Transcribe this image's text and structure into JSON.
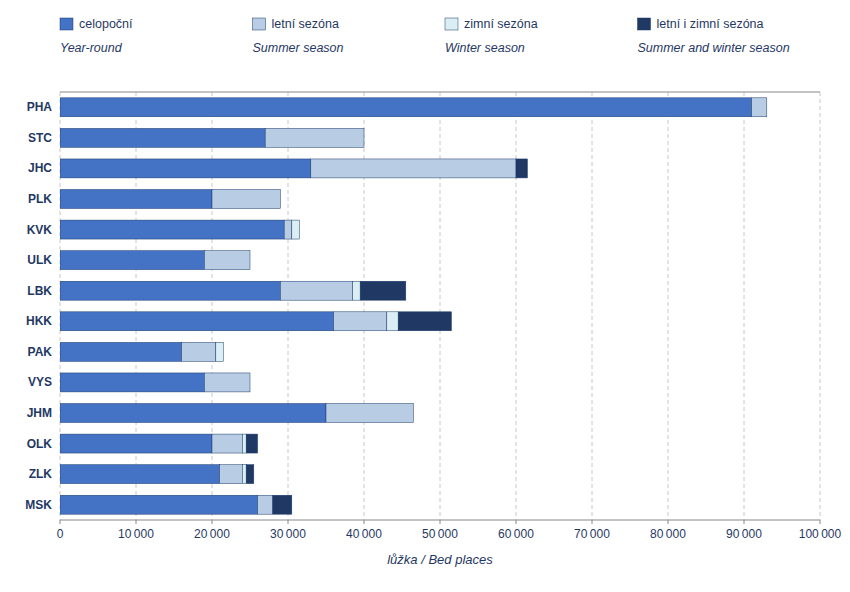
{
  "chart_data": {
    "type": "bar",
    "orientation": "horizontal",
    "stacked": true,
    "grid": true,
    "legend": "top",
    "categories": [
      "PHA",
      "STC",
      "JHC",
      "PLK",
      "KVK",
      "ULK",
      "LBK",
      "HKK",
      "PAK",
      "VYS",
      "JHM",
      "OLK",
      "ZLK",
      "MSK"
    ],
    "series": [
      {
        "name": "celoроční",
        "color": "#4472C4",
        "values": [
          91000,
          27000,
          33000,
          20000,
          29500,
          19000,
          29000,
          36000,
          16000,
          19000,
          35000,
          20000,
          21000,
          26000
        ]
      },
      {
        "name": "letní sezóna",
        "color": "#B8CCE4",
        "values": [
          2000,
          13000,
          27000,
          9000,
          1000,
          6000,
          9500,
          7000,
          4500,
          6000,
          11500,
          4000,
          3000,
          2000
        ]
      },
      {
        "name": "zimní sezóna",
        "color": "#DAEEF3",
        "values": [
          0,
          0,
          0,
          0,
          1000,
          0,
          1000,
          1500,
          1000,
          0,
          0,
          500,
          500,
          0
        ]
      },
      {
        "name": "letní i zimní sezóna",
        "color": "#1F3864",
        "values": [
          0,
          0,
          1500,
          0,
          0,
          0,
          6000,
          7000,
          0,
          0,
          0,
          1500,
          1000,
          2500
        ]
      }
    ],
    "annotations": [
      "Year-round",
      "Summer season",
      "Winter season",
      "Summer and winter season"
    ],
    "xlabel": "lůžka / Bed places",
    "xlim": [
      0,
      100000
    ],
    "xticks": [
      0,
      {
        "value": 10000,
        "label": "10 000"
      },
      {
        "value": 20000,
        "label": "20 000"
      },
      {
        "value": 30000,
        "label": "30 000"
      },
      {
        "value": 40000,
        "label": "40 000"
      },
      {
        "value": 50000,
        "label": "50 000"
      },
      {
        "value": 60000,
        "label": "60 000"
      },
      {
        "value": 70000,
        "label": "70 000"
      },
      {
        "value": 80000,
        "label": "80 000"
      },
      {
        "value": 90000,
        "label": "90 000"
      },
      {
        "value": 100000,
        "label": "100 000"
      }
    ]
  }
}
